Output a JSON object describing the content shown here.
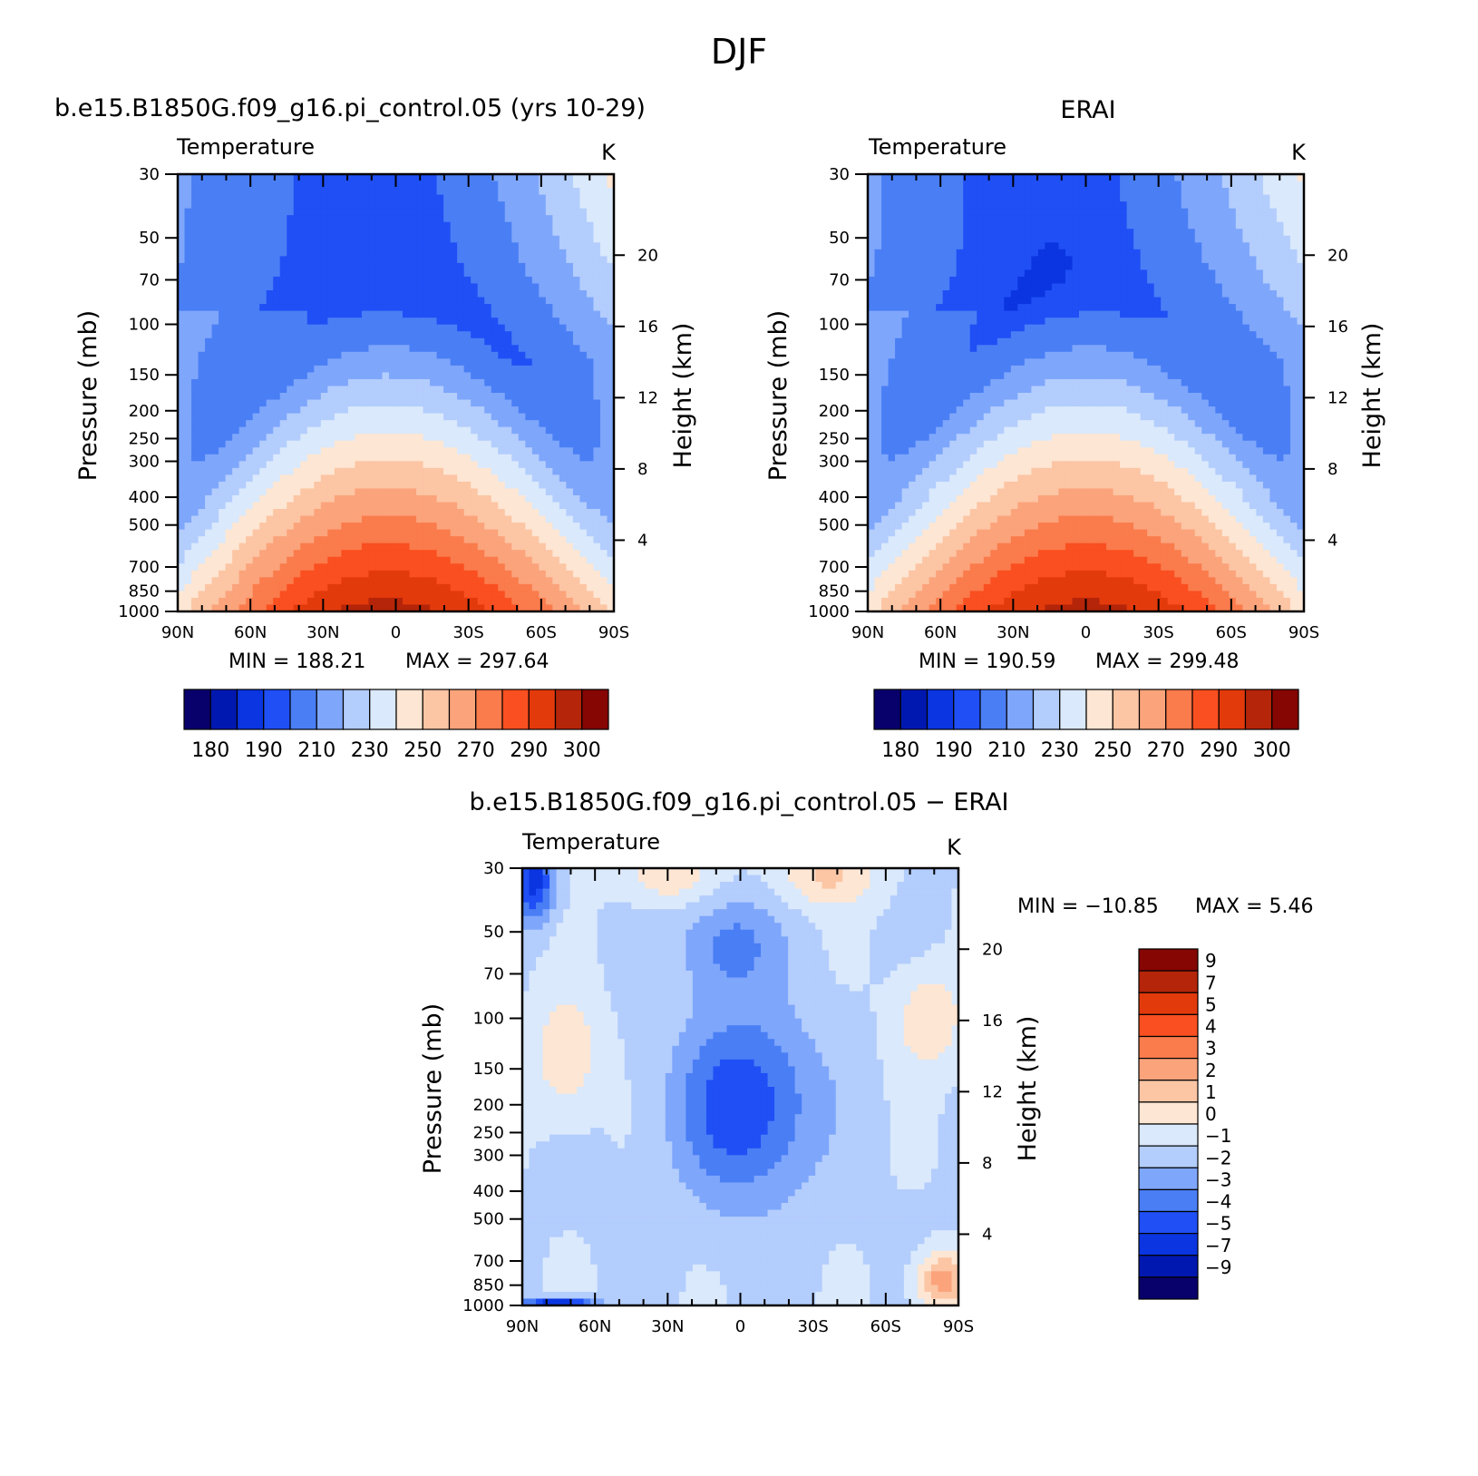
{
  "figure_title": "DJF",
  "chart_data": [
    {
      "type": "heatmap",
      "subplot": "model",
      "title": "b.e15.B1850G.f09_g16.pi_control.05 (yrs 10-29)",
      "left_label": "Temperature",
      "right_label": "K",
      "xlabel": "",
      "ylabel": "Pressure (mb)",
      "ylabel_right": "Height (km)",
      "x_ticks": [
        "90N",
        "60N",
        "30N",
        "0",
        "30S",
        "60S",
        "90S"
      ],
      "y_ticks": [
        "30",
        "50",
        "70",
        "100",
        "150",
        "200",
        "250",
        "300",
        "400",
        "500",
        "700",
        "850",
        "1000"
      ],
      "y_ticks_right": [
        "4",
        "8",
        "12",
        "16",
        "20"
      ],
      "min_label": "MIN = 188.21",
      "max_label": "MAX = 297.64",
      "levels": [
        175,
        180,
        185,
        190,
        200,
        210,
        220,
        230,
        240,
        250,
        260,
        270,
        280,
        290,
        295,
        300
      ],
      "colorbar_ticks": [
        "180",
        "190",
        "210",
        "230",
        "250",
        "270",
        "290",
        "300"
      ],
      "min": 188.21,
      "max": 297.64
    },
    {
      "type": "heatmap",
      "subplot": "obs",
      "title": "ERAI",
      "left_label": "Temperature",
      "right_label": "K",
      "xlabel": "",
      "ylabel": "Pressure (mb)",
      "ylabel_right": "Height (km)",
      "x_ticks": [
        "90N",
        "60N",
        "30N",
        "0",
        "30S",
        "60S",
        "90S"
      ],
      "y_ticks": [
        "30",
        "50",
        "70",
        "100",
        "150",
        "200",
        "250",
        "300",
        "400",
        "500",
        "700",
        "850",
        "1000"
      ],
      "y_ticks_right": [
        "4",
        "8",
        "12",
        "16",
        "20"
      ],
      "min_label": "MIN = 190.59",
      "max_label": "MAX = 299.48",
      "levels": [
        175,
        180,
        185,
        190,
        200,
        210,
        220,
        230,
        240,
        250,
        260,
        270,
        280,
        290,
        295,
        300
      ],
      "colorbar_ticks": [
        "180",
        "190",
        "210",
        "230",
        "250",
        "270",
        "290",
        "300"
      ],
      "min": 190.59,
      "max": 299.48
    },
    {
      "type": "heatmap",
      "subplot": "diff",
      "title": "b.e15.B1850G.f09_g16.pi_control.05 − ERAI",
      "left_label": "Temperature",
      "right_label": "K",
      "xlabel": "",
      "ylabel": "Pressure (mb)",
      "ylabel_right": "Height (km)",
      "x_ticks": [
        "90N",
        "60N",
        "30N",
        "0",
        "30S",
        "60S",
        "90S"
      ],
      "y_ticks": [
        "30",
        "50",
        "70",
        "100",
        "150",
        "200",
        "250",
        "300",
        "400",
        "500",
        "700",
        "850",
        "1000"
      ],
      "y_ticks_right": [
        "4",
        "8",
        "12",
        "16",
        "20"
      ],
      "min_label": "MIN = −10.85",
      "max_label": "MAX = 5.46",
      "levels": [
        -9,
        -7,
        -5,
        -4,
        -3,
        -2,
        -1,
        0,
        1,
        2,
        3,
        4,
        5,
        7,
        9
      ],
      "colorbar_ticks": [
        "9",
        "7",
        "5",
        "4",
        "3",
        "2",
        "1",
        "0",
        "−1",
        "−2",
        "−3",
        "−4",
        "−5",
        "−7",
        "−9"
      ],
      "min": -10.85,
      "max": 5.46
    }
  ],
  "colors": {
    "temp_scale": [
      "#08006b",
      "#0018b0",
      "#0a35e0",
      "#1f4ff5",
      "#4a7ef5",
      "#7ea6fb",
      "#b3cdfd",
      "#dae9fb",
      "#fde6d3",
      "#fcc5a4",
      "#fba37b",
      "#fa7b4c",
      "#fa4f20",
      "#e33a0c",
      "#b52509",
      "#850603"
    ],
    "diff_scale": [
      "#08006b",
      "#0018b0",
      "#0a35e0",
      "#1f4ff5",
      "#4a7ef5",
      "#7ea6fb",
      "#b3cdfd",
      "#dae9fb",
      "#fde6d3",
      "#fcc5a4",
      "#fba37b",
      "#fa7b4c",
      "#fa4f20",
      "#e33a0c",
      "#b52509",
      "#850603"
    ]
  }
}
